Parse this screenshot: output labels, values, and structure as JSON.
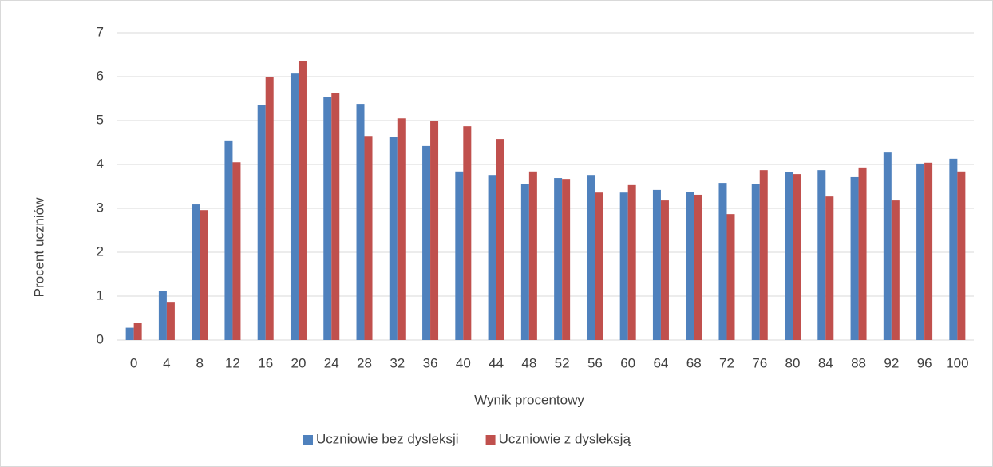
{
  "chart_data": {
    "type": "bar",
    "xlabel": "Wynik procentowy",
    "ylabel": "Procent uczniów",
    "categories": [
      "0",
      "4",
      "8",
      "12",
      "16",
      "20",
      "24",
      "28",
      "32",
      "36",
      "40",
      "44",
      "48",
      "52",
      "56",
      "60",
      "64",
      "68",
      "72",
      "76",
      "80",
      "84",
      "88",
      "92",
      "96",
      "100"
    ],
    "series": [
      {
        "name": "Uczniowie bez dysleksji",
        "color": "#4f81bd",
        "values": [
          0.28,
          1.11,
          3.09,
          4.53,
          5.36,
          6.07,
          5.53,
          5.38,
          4.62,
          4.42,
          3.84,
          3.76,
          3.56,
          3.69,
          3.76,
          3.36,
          3.42,
          3.38,
          3.58,
          3.55,
          3.82,
          3.87,
          3.71,
          4.27,
          4.02,
          4.13
        ]
      },
      {
        "name": "Uczniowie z dysleksją",
        "color": "#c0504d",
        "values": [
          0.4,
          0.87,
          2.96,
          4.05,
          6.0,
          6.36,
          5.62,
          4.65,
          5.05,
          5.0,
          4.87,
          4.58,
          3.84,
          3.67,
          3.36,
          3.53,
          3.18,
          3.31,
          2.87,
          3.87,
          3.78,
          3.27,
          3.93,
          3.18,
          4.04,
          3.84
        ]
      }
    ],
    "ylim": [
      0,
      7
    ],
    "yticks": [
      0,
      1,
      2,
      3,
      4,
      5,
      6,
      7
    ],
    "grid": true,
    "legend": "bottom"
  }
}
